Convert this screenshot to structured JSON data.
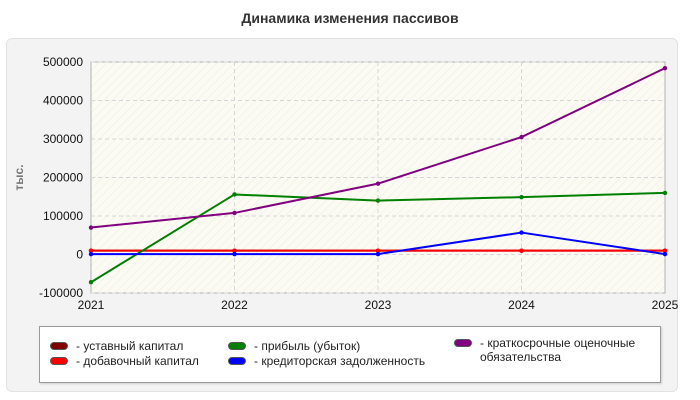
{
  "chart_data": {
    "type": "line",
    "title": "Динамика изменения пассивов",
    "ylabel": "тыс.",
    "xlabel": "",
    "x": [
      "2021",
      "2022",
      "2023",
      "2024",
      "2025"
    ],
    "y_ticks": [
      "-100000",
      "0",
      "100000",
      "200000",
      "300000",
      "400000",
      "500000"
    ],
    "ylim": [
      -100000,
      500000
    ],
    "grid": true,
    "legend_placement": "bottom",
    "series": [
      {
        "name": "уставный капитал",
        "color": "#800000",
        "values": [
          10000,
          10000,
          10000,
          10000,
          10000
        ]
      },
      {
        "name": "добавочный капитал",
        "color": "#ff0000",
        "values": [
          10000,
          10000,
          10000,
          10000,
          10000
        ]
      },
      {
        "name": "прибыль (убыток)",
        "color": "#008000",
        "values": [
          -72000,
          156000,
          140000,
          149000,
          160000
        ]
      },
      {
        "name": "кредиторская задолженность",
        "color": "#0000ff",
        "values": [
          1000,
          1000,
          1000,
          57000,
          1000
        ]
      },
      {
        "name": "краткосрочные оценочные обязательства",
        "color": "#800080",
        "values": [
          70000,
          108000,
          184000,
          305000,
          484000
        ]
      }
    ]
  }
}
